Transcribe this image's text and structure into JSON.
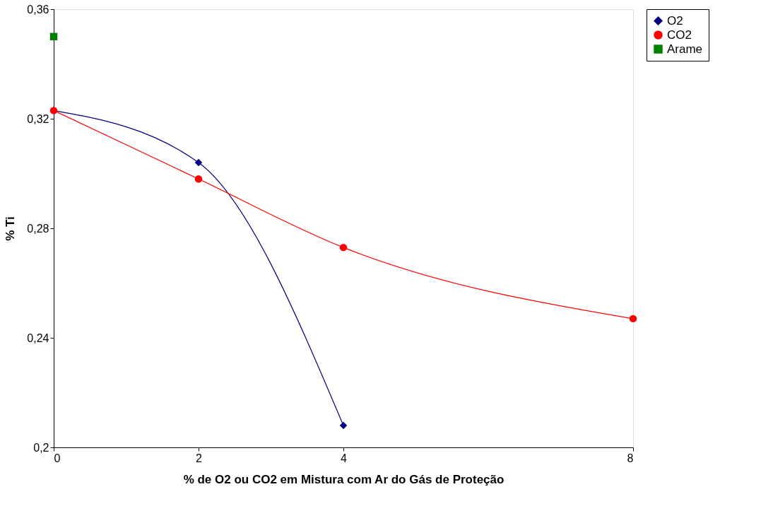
{
  "chart_data": {
    "type": "line",
    "xlabel": "% de O2 ou CO2 em Mistura com Ar do Gás de Proteção",
    "ylabel": "% Ti",
    "xlim": [
      0,
      8
    ],
    "xticks": [
      0,
      2,
      4,
      8
    ],
    "ylim": [
      0.2,
      0.36
    ],
    "yticks": [
      {
        "value": 0.2,
        "label": "0,2"
      },
      {
        "value": 0.24,
        "label": "0,24"
      },
      {
        "value": 0.28,
        "label": "0,28"
      },
      {
        "value": 0.32,
        "label": "0,32"
      },
      {
        "value": 0.36,
        "label": "0,36"
      }
    ],
    "grid": false,
    "legend": "right",
    "series": [
      {
        "name": "O2",
        "color": "#000080",
        "marker": "diamond",
        "x": [
          0,
          2,
          4
        ],
        "values": [
          0.323,
          0.304,
          0.208
        ]
      },
      {
        "name": "CO2",
        "color": "#ff0000",
        "marker": "circle",
        "x": [
          0,
          2,
          4,
          8
        ],
        "values": [
          0.323,
          0.298,
          0.273,
          0.247
        ]
      },
      {
        "name": "Arame",
        "color": "#008000",
        "marker": "square",
        "x": [
          0
        ],
        "values": [
          0.35
        ]
      }
    ]
  }
}
